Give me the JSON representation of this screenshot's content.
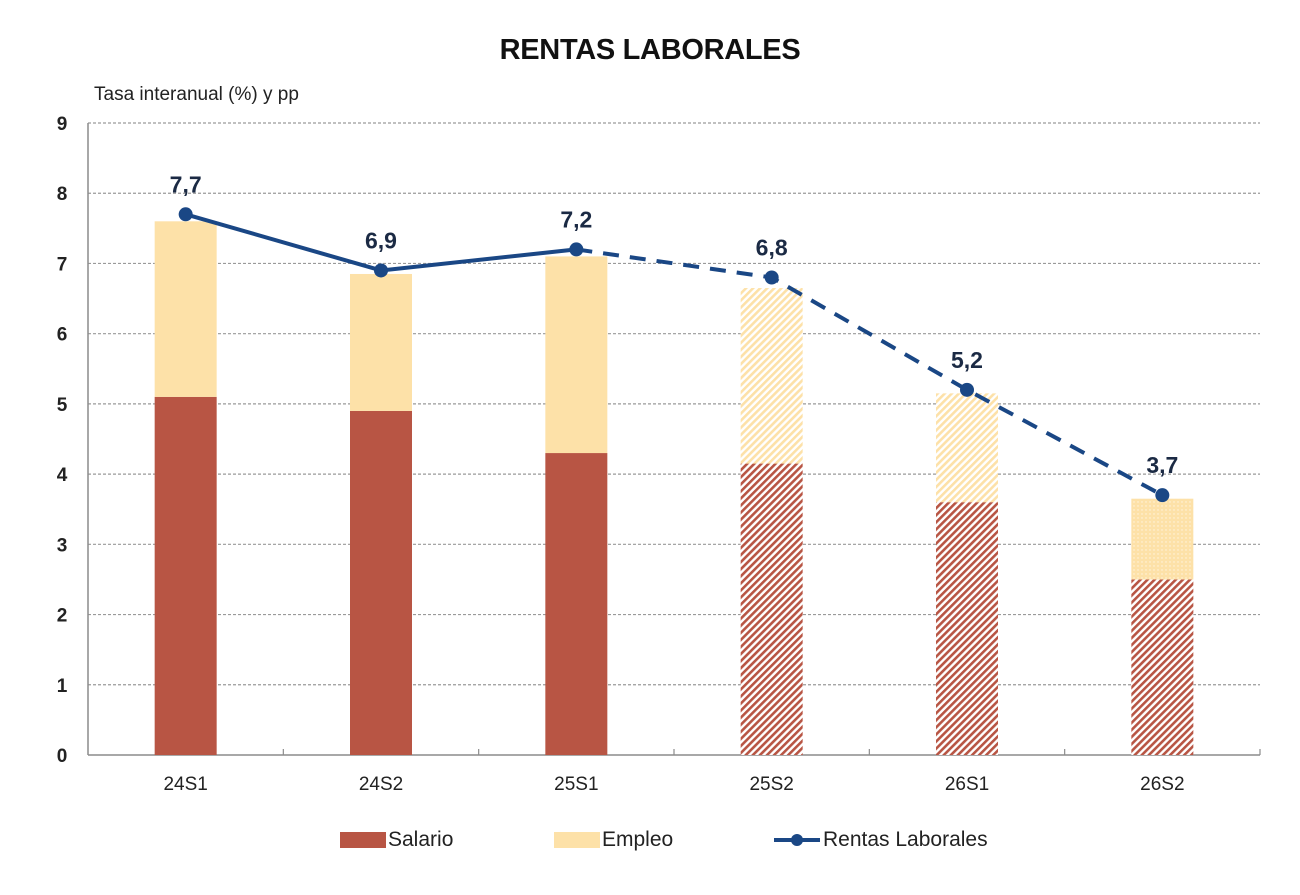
{
  "chart_data": {
    "type": "bar",
    "subtype": "stacked-bar-with-line",
    "title": "RENTAS LABORALES",
    "ylabel": "Tasa interanual (%) y pp",
    "xlabel": "",
    "ylim": [
      0,
      9
    ],
    "yticks": [
      "0",
      "1",
      "2",
      "3",
      "4",
      "5",
      "6",
      "7",
      "8",
      "9"
    ],
    "categories": [
      "24S1",
      "24S2",
      "25S1",
      "25S2",
      "26S1",
      "26S2"
    ],
    "forecast_from_index": 3,
    "grid": true,
    "legend_position": "bottom",
    "series": [
      {
        "name": "Salario",
        "type": "bar",
        "color": "#b85544",
        "values": [
          5.1,
          4.9,
          4.3,
          4.15,
          3.6,
          2.5
        ]
      },
      {
        "name": "Empleo",
        "type": "bar",
        "color": "#fde1a8",
        "values": [
          2.5,
          1.95,
          2.8,
          2.5,
          1.55,
          1.15
        ]
      },
      {
        "name": "Rentas Laborales",
        "type": "line",
        "color": "#1a4785",
        "values": [
          7.7,
          6.9,
          7.2,
          6.8,
          5.2,
          3.7
        ],
        "labels": [
          "7,7",
          "6,9",
          "7,2",
          "6,8",
          "5,2",
          "3,7"
        ]
      }
    ]
  },
  "legend": {
    "items": [
      {
        "label": "Salario"
      },
      {
        "label": "Empleo"
      },
      {
        "label": "Rentas Laborales"
      }
    ]
  }
}
